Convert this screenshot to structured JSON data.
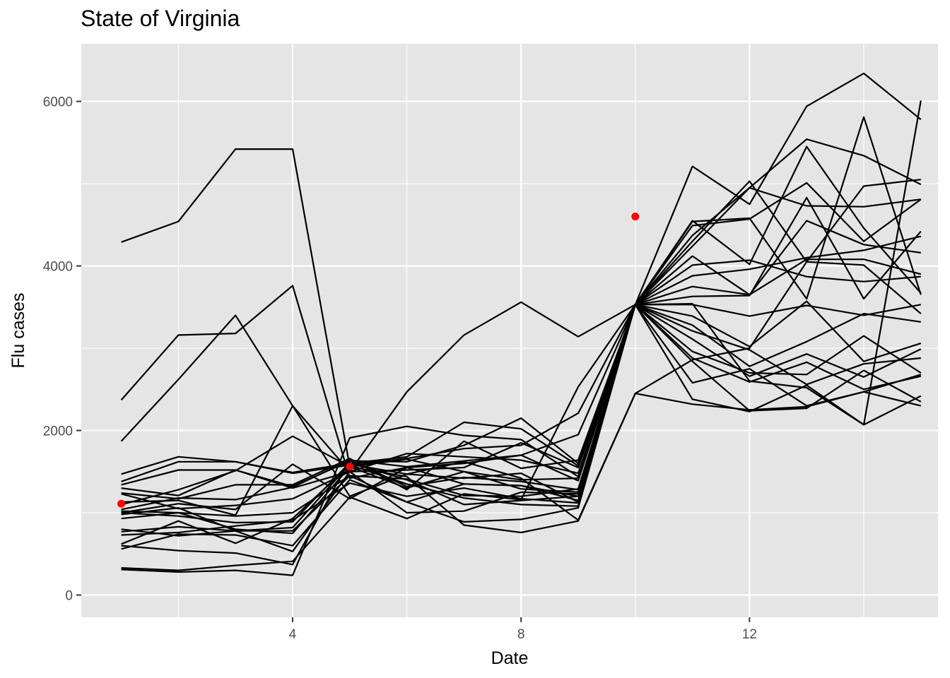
{
  "chart_data": {
    "type": "line",
    "title": "State of Virginia",
    "xlabel": "Date",
    "ylabel": "Flu cases",
    "xlim": [
      0.3,
      15.3
    ],
    "ylim": [
      -270,
      6700
    ],
    "x_ticks": [
      4,
      8,
      12
    ],
    "y_ticks": [
      0,
      2000,
      4000,
      6000
    ],
    "x_minor_ticks": [
      2,
      6,
      10,
      14
    ],
    "y_minor_ticks": [
      1000,
      3000,
      5000
    ],
    "grid": true,
    "background": "#e5e5e5",
    "line_color": "#000000",
    "point_color": "#ff0000",
    "x": [
      1,
      2,
      3,
      4,
      5,
      6,
      7,
      8,
      9,
      10,
      11,
      12,
      13,
      14,
      15
    ],
    "series": [
      {
        "values": [
          4290,
          4540,
          5420,
          5420,
          1560,
          1650,
          1500,
          1400,
          1420,
          3530,
          5210,
          4750,
          5940,
          6340,
          5780
        ]
      },
      {
        "values": [
          2370,
          3160,
          3180,
          3760,
          1420,
          1550,
          1600,
          1700,
          1950,
          3530,
          4540,
          4580,
          3600,
          5810,
          3650
        ]
      },
      {
        "values": [
          1870,
          2620,
          3400,
          2300,
          1500,
          2470,
          3160,
          3560,
          3140,
          3530,
          4370,
          4950,
          5540,
          5340,
          4990
        ]
      },
      {
        "values": [
          1470,
          1680,
          1620,
          1480,
          1580,
          1660,
          1780,
          1820,
          2210,
          3530,
          4300,
          5030,
          4050,
          4970,
          5050
        ]
      },
      {
        "values": [
          1380,
          1620,
          1620,
          1490,
          1600,
          1680,
          2100,
          2020,
          1570,
          3530,
          4240,
          4950,
          4730,
          4720,
          4810
        ]
      },
      {
        "values": [
          1340,
          1520,
          1520,
          1320,
          1630,
          1620,
          1820,
          2150,
          1600,
          3530,
          4120,
          3650,
          4550,
          4260,
          4160
        ]
      },
      {
        "values": [
          1300,
          1210,
          1520,
          1300,
          1500,
          1520,
          1550,
          1850,
          1550,
          3530,
          4010,
          4070,
          3870,
          3810,
          3870
        ]
      },
      {
        "values": [
          1240,
          1170,
          1340,
          1340,
          1660,
          1280,
          1870,
          1540,
          1640,
          3530,
          3750,
          3650,
          4080,
          4080,
          3900
        ]
      },
      {
        "values": [
          1230,
          1050,
          1090,
          1170,
          1500,
          1720,
          1680,
          1640,
          1480,
          3530,
          3880,
          3960,
          4100,
          4190,
          4360
        ]
      },
      {
        "values": [
          1040,
          1180,
          1160,
          1310,
          1640,
          1560,
          1630,
          1700,
          1390,
          3530,
          3630,
          3640,
          4830,
          3600,
          4420
        ]
      },
      {
        "values": [
          1020,
          1000,
          960,
          1000,
          1450,
          1410,
          1210,
          1200,
          1290,
          3530,
          3530,
          3390,
          3520,
          3400,
          3530
        ]
      },
      {
        "values": [
          1000,
          960,
          880,
          890,
          1610,
          1400,
          1100,
          1150,
          1200,
          3530,
          3390,
          3020,
          3570,
          2840,
          3060
        ]
      },
      {
        "values": [
          980,
          1060,
          780,
          780,
          1450,
          1130,
          1350,
          1330,
          1150,
          3530,
          3280,
          2780,
          3080,
          3420,
          3320
        ]
      },
      {
        "values": [
          930,
          1000,
          800,
          750,
          1560,
          1300,
          1500,
          1290,
          1250,
          3530,
          3210,
          2980,
          2560,
          2810,
          2880
        ]
      },
      {
        "values": [
          800,
          720,
          780,
          820,
          1590,
          1470,
          1420,
          1480,
          1130,
          3530,
          3110,
          2660,
          2930,
          2650,
          2990
        ]
      },
      {
        "values": [
          770,
          830,
          780,
          530,
          1500,
          1000,
          1020,
          1250,
          1230,
          3530,
          2960,
          2700,
          2680,
          3150,
          2700
        ]
      },
      {
        "values": [
          730,
          760,
          840,
          910,
          1360,
          1200,
          1300,
          1170,
          1120,
          3530,
          2880,
          2590,
          2830,
          2500,
          2660
        ]
      },
      {
        "values": [
          620,
          900,
          630,
          930,
          1580,
          1350,
          1180,
          1100,
          1080,
          3530,
          2840,
          2240,
          2270,
          2730,
          2350
        ]
      },
      {
        "values": [
          560,
          740,
          730,
          600,
          1400,
          1130,
          890,
          920,
          1060,
          3530,
          2580,
          2750,
          2300,
          2470,
          2300
        ]
      },
      {
        "values": [
          600,
          540,
          510,
          370,
          1640,
          1320,
          1430,
          1380,
          1280,
          3530,
          2380,
          2230,
          2550,
          2070,
          2420
        ]
      },
      {
        "values": [
          330,
          300,
          360,
          410,
          1190,
          930,
          1230,
          1160,
          2530,
          3530,
          3540,
          2600,
          2520,
          2070,
          6010
        ]
      },
      {
        "values": [
          310,
          280,
          300,
          240,
          1910,
          2050,
          1940,
          1890,
          1440,
          3530,
          4550,
          4020,
          5450,
          4460,
          3670
        ]
      },
      {
        "values": [
          1000,
          1110,
          1040,
          1590,
          1170,
          1550,
          1350,
          1330,
          1200,
          3530,
          4490,
          4570,
          5010,
          4300,
          4810
        ]
      },
      {
        "values": [
          1100,
          1280,
          1510,
          1930,
          1560,
          1440,
          850,
          760,
          900,
          2450,
          2320,
          2250,
          2290,
          2470,
          2680
        ]
      },
      {
        "values": [
          1130,
          1150,
          970,
          2300,
          1200,
          1470,
          1620,
          1420,
          910,
          2450,
          2860,
          3000,
          4050,
          4010,
          3420
        ]
      }
    ],
    "points": [
      {
        "x": 1,
        "y": 1110
      },
      {
        "x": 5,
        "y": 1560
      },
      {
        "x": 10,
        "y": 4600
      }
    ]
  }
}
